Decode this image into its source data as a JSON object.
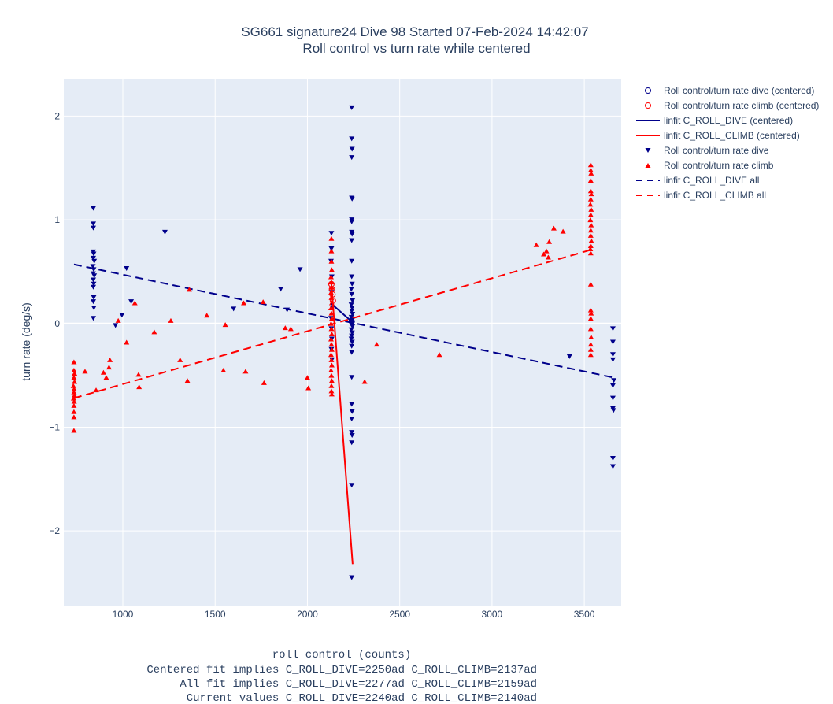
{
  "title": {
    "line1": "SG661 signature24 Dive 98 Started 07-Feb-2024 14:42:07",
    "line2": "Roll control vs turn rate while centered"
  },
  "axes": {
    "ylabel": "turn rate (deg/s)",
    "xlabel_lines": [
      "roll control (counts)",
      "Centered fit implies C_ROLL_DIVE=2250ad C_ROLL_CLIMB=2137ad",
      "All fit implies C_ROLL_DIVE=2277ad C_ROLL_CLIMB=2159ad",
      "Current values C_ROLL_DIVE=2240ad C_ROLL_CLIMB=2140ad"
    ],
    "x_ticks": [
      "1000",
      "1500",
      "2000",
      "2500",
      "3000",
      "3500"
    ],
    "y_ticks": [
      "−2",
      "−1",
      "0",
      "1",
      "2"
    ]
  },
  "colors": {
    "dive": "#00008b",
    "climb": "#ff0000",
    "plot_bg": "#e5ecf6",
    "grid": "#ffffff"
  },
  "legend": {
    "placement": "top-right outside plot",
    "entries": [
      {
        "label": "Roll control/turn rate dive (centered)",
        "symbol": "circle-open",
        "color": "#00008b"
      },
      {
        "label": "Roll control/turn rate climb (centered)",
        "symbol": "circle-open",
        "color": "#ff0000"
      },
      {
        "label": "linfit C_ROLL_DIVE (centered)",
        "symbol": "line-solid",
        "color": "#00008b"
      },
      {
        "label": "linfit C_ROLL_CLIMB (centered)",
        "symbol": "line-solid",
        "color": "#ff0000"
      },
      {
        "label": "Roll control/turn rate dive",
        "symbol": "triangle-down",
        "color": "#00008b"
      },
      {
        "label": "Roll control/turn rate climb",
        "symbol": "triangle-up",
        "color": "#ff0000"
      },
      {
        "label": "linfit C_ROLL_DIVE all",
        "symbol": "line-dash",
        "color": "#00008b"
      },
      {
        "label": "linfit C_ROLL_CLIMB all",
        "symbol": "line-dash",
        "color": "#ff0000"
      }
    ]
  },
  "chart_data": {
    "type": "scatter",
    "xlim": [
      680,
      3700
    ],
    "ylim": [
      -2.72,
      2.36
    ],
    "grid": true,
    "series": [
      {
        "name": "Roll control/turn rate dive (centered)",
        "marker": "circle-open",
        "color": "#00008b",
        "points": [
          [
            2240,
            0.02
          ]
        ]
      },
      {
        "name": "Roll control/turn rate climb (centered)",
        "marker": "circle-open",
        "color": "#ff0000",
        "points": [
          [
            2130,
            0.38
          ],
          [
            2133,
            0.33
          ],
          [
            2136,
            0.28
          ],
          [
            2138,
            0.22
          ]
        ]
      },
      {
        "name": "linfit C_ROLL_DIVE (centered)",
        "type": "line",
        "dash": "solid",
        "color": "#00008b",
        "points": [
          [
            2130,
            0.19
          ],
          [
            2252,
            0.0
          ]
        ]
      },
      {
        "name": "linfit C_ROLL_CLIMB (centered)",
        "type": "line",
        "dash": "solid",
        "color": "#ff0000",
        "points": [
          [
            2130,
            0.38
          ],
          [
            2245,
            -2.32
          ]
        ]
      },
      {
        "name": "Roll control/turn rate dive",
        "marker": "triangle-down",
        "color": "#00008b",
        "points": [
          [
            840,
            1.11
          ],
          [
            840,
            0.96
          ],
          [
            840,
            0.92
          ],
          [
            840,
            0.69
          ],
          [
            842,
            0.67
          ],
          [
            840,
            0.63
          ],
          [
            845,
            0.6
          ],
          [
            838,
            0.55
          ],
          [
            842,
            0.52
          ],
          [
            840,
            0.48
          ],
          [
            845,
            0.46
          ],
          [
            840,
            0.42
          ],
          [
            842,
            0.38
          ],
          [
            840,
            0.35
          ],
          [
            842,
            0.25
          ],
          [
            840,
            0.21
          ],
          [
            843,
            0.15
          ],
          [
            840,
            0.05
          ],
          [
            1228,
            0.88
          ],
          [
            1020,
            0.53
          ],
          [
            1045,
            0.21
          ],
          [
            995,
            0.08
          ],
          [
            960,
            -0.02
          ],
          [
            1600,
            0.14
          ],
          [
            1855,
            0.33
          ],
          [
            1960,
            0.52
          ],
          [
            1890,
            0.13
          ],
          [
            2130,
            0.87
          ],
          [
            2130,
            0.72
          ],
          [
            2128,
            0.6
          ],
          [
            2132,
            0.45
          ],
          [
            2130,
            0.3
          ],
          [
            2135,
            0.15
          ],
          [
            2128,
            0.05
          ],
          [
            2130,
            -0.05
          ],
          [
            2132,
            -0.15
          ],
          [
            2130,
            -0.25
          ],
          [
            2133,
            -0.35
          ],
          [
            2240,
            2.08
          ],
          [
            2240,
            1.78
          ],
          [
            2242,
            1.68
          ],
          [
            2240,
            1.6
          ],
          [
            2240,
            1.21
          ],
          [
            2242,
            1.2
          ],
          [
            2240,
            1.0
          ],
          [
            2240,
            0.98
          ],
          [
            2240,
            0.88
          ],
          [
            2242,
            0.86
          ],
          [
            2240,
            0.8
          ],
          [
            2240,
            0.6
          ],
          [
            2240,
            0.45
          ],
          [
            2242,
            0.38
          ],
          [
            2238,
            0.33
          ],
          [
            2240,
            0.28
          ],
          [
            2244,
            0.22
          ],
          [
            2238,
            0.18
          ],
          [
            2242,
            0.15
          ],
          [
            2240,
            0.12
          ],
          [
            2244,
            0.09
          ],
          [
            2238,
            0.06
          ],
          [
            2242,
            0.03
          ],
          [
            2240,
            0.0
          ],
          [
            2244,
            -0.03
          ],
          [
            2238,
            -0.06
          ],
          [
            2242,
            -0.09
          ],
          [
            2240,
            -0.12
          ],
          [
            2238,
            -0.15
          ],
          [
            2242,
            -0.18
          ],
          [
            2240,
            -0.22
          ],
          [
            2240,
            -0.28
          ],
          [
            2240,
            -0.52
          ],
          [
            2240,
            -0.78
          ],
          [
            2242,
            -0.85
          ],
          [
            2240,
            -0.92
          ],
          [
            2240,
            -1.05
          ],
          [
            2242,
            -1.08
          ],
          [
            2240,
            -1.15
          ],
          [
            2240,
            -1.56
          ],
          [
            2240,
            -2.45
          ],
          [
            3420,
            -0.32
          ],
          [
            3655,
            -0.05
          ],
          [
            3655,
            -0.18
          ],
          [
            3655,
            -0.3
          ],
          [
            3655,
            -0.35
          ],
          [
            3660,
            -0.55
          ],
          [
            3655,
            -0.6
          ],
          [
            3655,
            -0.72
          ],
          [
            3655,
            -0.82
          ],
          [
            3658,
            -0.84
          ],
          [
            3655,
            -1.3
          ],
          [
            3655,
            -1.38
          ]
        ]
      },
      {
        "name": "Roll control/turn rate climb",
        "marker": "triangle-up",
        "color": "#ff0000",
        "points": [
          [
            735,
            -0.37
          ],
          [
            735,
            -0.45
          ],
          [
            738,
            -0.48
          ],
          [
            735,
            -0.52
          ],
          [
            738,
            -0.56
          ],
          [
            732,
            -0.6
          ],
          [
            736,
            -0.63
          ],
          [
            735,
            -0.66
          ],
          [
            738,
            -0.69
          ],
          [
            733,
            -0.72
          ],
          [
            736,
            -0.75
          ],
          [
            735,
            -0.79
          ],
          [
            735,
            -0.85
          ],
          [
            735,
            -0.9
          ],
          [
            735,
            -1.03
          ],
          [
            795,
            -0.46
          ],
          [
            855,
            -0.64
          ],
          [
            895,
            -0.47
          ],
          [
            910,
            -0.52
          ],
          [
            925,
            -0.42
          ],
          [
            930,
            -0.35
          ],
          [
            975,
            0.03
          ],
          [
            1020,
            -0.18
          ],
          [
            1065,
            0.2
          ],
          [
            1085,
            -0.49
          ],
          [
            1088,
            -0.61
          ],
          [
            1170,
            -0.08
          ],
          [
            1260,
            0.03
          ],
          [
            1310,
            -0.35
          ],
          [
            1350,
            -0.55
          ],
          [
            1360,
            0.33
          ],
          [
            1455,
            0.08
          ],
          [
            1545,
            -0.45
          ],
          [
            1555,
            -0.01
          ],
          [
            1655,
            0.2
          ],
          [
            1665,
            -0.46
          ],
          [
            1760,
            0.21
          ],
          [
            1765,
            -0.57
          ],
          [
            1880,
            -0.04
          ],
          [
            1910,
            -0.05
          ],
          [
            2000,
            -0.52
          ],
          [
            2005,
            -0.62
          ],
          [
            2130,
            0.82
          ],
          [
            2130,
            0.7
          ],
          [
            2130,
            0.6
          ],
          [
            2132,
            0.52
          ],
          [
            2128,
            0.45
          ],
          [
            2130,
            0.4
          ],
          [
            2132,
            0.35
          ],
          [
            2128,
            0.3
          ],
          [
            2130,
            0.25
          ],
          [
            2132,
            0.2
          ],
          [
            2128,
            0.15
          ],
          [
            2130,
            0.1
          ],
          [
            2132,
            0.05
          ],
          [
            2128,
            0.0
          ],
          [
            2130,
            -0.05
          ],
          [
            2132,
            -0.1
          ],
          [
            2128,
            -0.15
          ],
          [
            2130,
            -0.2
          ],
          [
            2132,
            -0.25
          ],
          [
            2128,
            -0.3
          ],
          [
            2130,
            -0.35
          ],
          [
            2132,
            -0.4
          ],
          [
            2128,
            -0.45
          ],
          [
            2130,
            -0.5
          ],
          [
            2132,
            -0.55
          ],
          [
            2130,
            -0.6
          ],
          [
            2130,
            -0.65
          ],
          [
            2132,
            -0.68
          ],
          [
            2310,
            -0.56
          ],
          [
            2375,
            -0.2
          ],
          [
            2715,
            -0.3
          ],
          [
            3240,
            0.76
          ],
          [
            3280,
            0.67
          ],
          [
            3295,
            0.7
          ],
          [
            3305,
            0.64
          ],
          [
            3310,
            0.79
          ],
          [
            3335,
            0.92
          ],
          [
            3385,
            0.89
          ],
          [
            3535,
            1.53
          ],
          [
            3535,
            1.48
          ],
          [
            3537,
            1.45
          ],
          [
            3535,
            1.38
          ],
          [
            3535,
            1.28
          ],
          [
            3538,
            1.25
          ],
          [
            3535,
            1.2
          ],
          [
            3533,
            1.15
          ],
          [
            3537,
            1.1
          ],
          [
            3535,
            1.05
          ],
          [
            3533,
            1.0
          ],
          [
            3537,
            0.95
          ],
          [
            3535,
            0.9
          ],
          [
            3535,
            0.85
          ],
          [
            3538,
            0.8
          ],
          [
            3535,
            0.75
          ],
          [
            3533,
            0.72
          ],
          [
            3535,
            0.68
          ],
          [
            3535,
            0.38
          ],
          [
            3535,
            0.13
          ],
          [
            3537,
            0.1
          ],
          [
            3535,
            0.05
          ],
          [
            3535,
            -0.05
          ],
          [
            3537,
            -0.13
          ],
          [
            3535,
            -0.2
          ],
          [
            3535,
            -0.25
          ],
          [
            3535,
            -0.3
          ]
        ]
      },
      {
        "name": "linfit C_ROLL_DIVE all",
        "type": "line",
        "dash": "dash",
        "color": "#00008b",
        "points": [
          [
            735,
            0.57
          ],
          [
            3655,
            -0.52
          ]
        ]
      },
      {
        "name": "linfit C_ROLL_CLIMB all",
        "type": "line",
        "dash": "dash",
        "color": "#ff0000",
        "points": [
          [
            735,
            -0.72
          ],
          [
            3555,
            0.72
          ]
        ]
      }
    ]
  }
}
